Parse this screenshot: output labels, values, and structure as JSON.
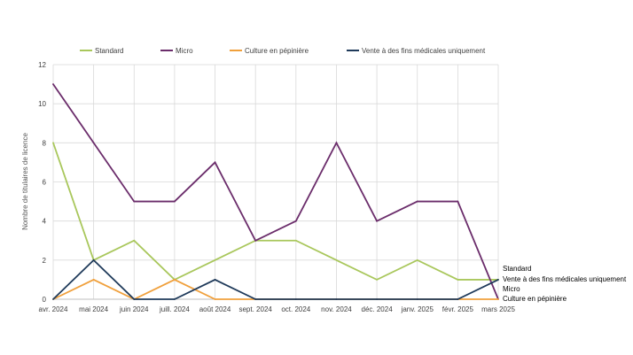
{
  "chart_data": {
    "type": "line",
    "title": "",
    "xlabel": "",
    "ylabel": "Nombre de titulaires de licence",
    "ylim": [
      0,
      12
    ],
    "yticks": [
      0,
      2,
      4,
      6,
      8,
      10,
      12
    ],
    "grid": true,
    "legend_position": "top",
    "categories": [
      "avr. 2024",
      "mai 2024",
      "juin 2024",
      "juill. 2024",
      "août 2024",
      "sept. 2024",
      "oct. 2024",
      "nov. 2024",
      "déc. 2024",
      "janv. 2025",
      "févr. 2025",
      "mars 2025"
    ],
    "series": [
      {
        "name": "Standard",
        "color": "#a9c75c",
        "values": [
          8,
          2,
          3,
          1,
          2,
          3,
          3,
          2,
          1,
          2,
          1,
          1
        ]
      },
      {
        "name": "Micro",
        "color": "#6b2d6b",
        "values": [
          11,
          8,
          5,
          5,
          7,
          3,
          4,
          8,
          4,
          5,
          5,
          0
        ]
      },
      {
        "name": "Culture en pépinière",
        "color": "#f0a03c",
        "values": [
          0,
          1,
          0,
          1,
          0,
          0,
          0,
          0,
          0,
          0,
          0,
          0
        ]
      },
      {
        "name": "Vente à des fins médicales uniquement",
        "color": "#1f3a5a",
        "values": [
          0,
          2,
          0,
          0,
          1,
          0,
          0,
          0,
          0,
          0,
          0,
          1
        ]
      }
    ],
    "end_labels": [
      "Standard",
      "Vente à des fins médicales uniquement",
      "Micro",
      "Culture en pépinière"
    ]
  }
}
